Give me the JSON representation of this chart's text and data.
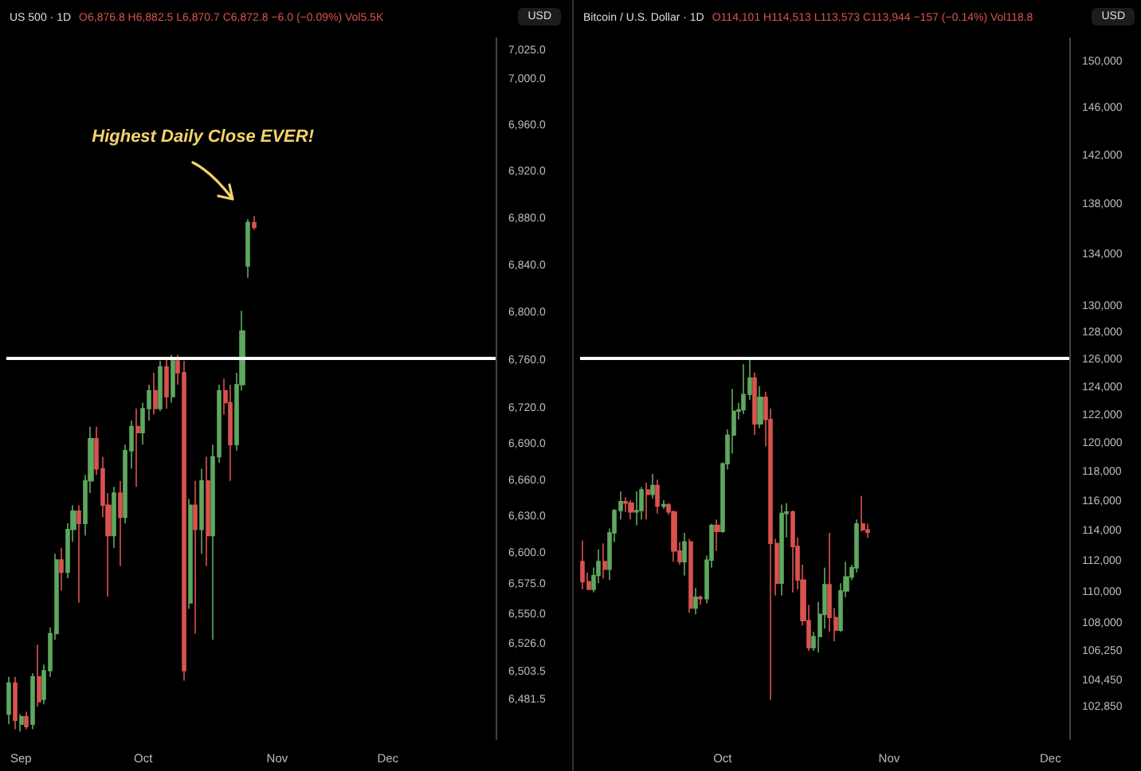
{
  "chart_data": [
    {
      "type": "candlestick",
      "title": "US 500 · 1D",
      "subtitle": "O6,876.8 H6,882.5 L6,870.7 C6,872.8 −6.0 (−0.09%) Vol5.5K",
      "categories": [
        null,
        null,
        "Sep",
        null,
        null,
        null,
        null,
        null,
        null,
        null,
        null,
        null,
        null,
        null,
        null,
        null,
        null,
        null,
        null,
        null,
        null,
        null,
        null,
        "Oct",
        null,
        null,
        null,
        null,
        null,
        null,
        null,
        null,
        null,
        null,
        null,
        null,
        null,
        null,
        null,
        null,
        null,
        null,
        null,
        null,
        null,
        null,
        "Nov",
        null,
        null,
        null,
        null,
        null,
        null,
        null,
        null,
        null,
        null,
        null,
        null,
        null,
        null,
        null,
        null,
        null,
        null,
        "Dec",
        null,
        null,
        null,
        null,
        null,
        null,
        null,
        null,
        null,
        null,
        null,
        null,
        null,
        null,
        null,
        null,
        null,
        null
      ],
      "ohlc": [
        [
          6470,
          6500,
          6462,
          6495
        ],
        [
          6495,
          6500,
          6458,
          6465
        ],
        [
          6462,
          6470,
          6456,
          6468
        ],
        [
          6468,
          6472,
          6458,
          6460
        ],
        [
          6462,
          6503,
          6458,
          6500
        ],
        [
          6500,
          6526,
          6476,
          6480
        ],
        [
          6482,
          6510,
          6478,
          6505
        ],
        [
          6505,
          6540,
          6500,
          6535
        ],
        [
          6535,
          6600,
          6530,
          6595
        ],
        [
          6595,
          6605,
          6570,
          6585
        ],
        [
          6585,
          6625,
          6580,
          6620
        ],
        [
          6620,
          6640,
          6610,
          6635
        ],
        [
          6635,
          6640,
          6560,
          6625
        ],
        [
          6625,
          6665,
          6615,
          6660
        ],
        [
          6660,
          6705,
          6650,
          6695
        ],
        [
          6695,
          6705,
          6665,
          6670
        ],
        [
          6670,
          6680,
          6630,
          6640
        ],
        [
          6640,
          6650,
          6565,
          6615
        ],
        [
          6615,
          6655,
          6605,
          6650
        ],
        [
          6650,
          6660,
          6590,
          6630
        ],
        [
          6630,
          6690,
          6625,
          6685
        ],
        [
          6685,
          6710,
          6670,
          6705
        ],
        [
          6705,
          6720,
          6655,
          6700
        ],
        [
          6700,
          6725,
          6690,
          6720
        ],
        [
          6720,
          6740,
          6710,
          6735
        ],
        [
          6735,
          6750,
          6715,
          6720
        ],
        [
          6720,
          6760,
          6718,
          6755
        ],
        [
          6755,
          6762,
          6720,
          6730
        ],
        [
          6730,
          6765,
          6725,
          6760
        ],
        [
          6760,
          6765,
          6740,
          6750
        ],
        [
          6750,
          6760,
          6497,
          6505
        ],
        [
          6560,
          6645,
          6555,
          6640
        ],
        [
          6640,
          6660,
          6535,
          6620
        ],
        [
          6620,
          6670,
          6600,
          6660
        ],
        [
          6660,
          6680,
          6590,
          6615
        ],
        [
          6615,
          6690,
          6530,
          6680
        ],
        [
          6680,
          6740,
          6675,
          6735
        ],
        [
          6735,
          6745,
          6715,
          6725
        ],
        [
          6725,
          6740,
          6660,
          6690
        ],
        [
          6690,
          6750,
          6685,
          6740
        ],
        [
          6740,
          6802,
          6735,
          6785
        ],
        [
          6840,
          6880,
          6830,
          6877
        ],
        [
          6876.8,
          6882.5,
          6870.7,
          6872.8
        ],
        null,
        null,
        null,
        null,
        null,
        null,
        null,
        null,
        null,
        null,
        null,
        null,
        null,
        null,
        null,
        null,
        null,
        null,
        null,
        null,
        null,
        null,
        null,
        null,
        null,
        null,
        null,
        null,
        null,
        null,
        null,
        null,
        null,
        null,
        null,
        null,
        null,
        null,
        null,
        null,
        null
      ],
      "colors": [
        "#5fa85f",
        "#d9534f",
        "#5fa85f",
        "#d9534f",
        "#5fa85f",
        "#d9534f",
        "#5fa85f",
        "#5fa85f",
        "#5fa85f",
        "#d9534f",
        "#5fa85f",
        "#5fa85f",
        "#d9534f",
        "#5fa85f",
        "#5fa85f",
        "#d9534f",
        "#d9534f",
        "#d9534f",
        "#5fa85f",
        "#d9534f",
        "#5fa85f",
        "#5fa85f",
        "#d9534f",
        "#5fa85f",
        "#5fa85f",
        "#d9534f",
        "#5fa85f",
        "#d9534f",
        "#5fa85f",
        "#d9534f",
        "#d9534f",
        "#5fa85f",
        "#d9534f",
        "#5fa85f",
        "#d9534f",
        "#5fa85f",
        "#5fa85f",
        "#d9534f",
        "#d9534f",
        "#5fa85f",
        "#5fa85f",
        "#5fa85f",
        "#d9534f",
        null,
        null,
        null,
        null,
        null,
        null,
        null,
        null,
        null,
        null,
        null,
        null,
        null,
        null,
        null,
        null,
        null,
        null,
        null,
        null,
        null,
        null,
        null,
        null,
        null,
        null,
        null,
        null,
        null,
        null,
        null,
        null,
        null,
        null,
        null,
        null,
        null,
        null,
        null,
        null,
        null
      ],
      "log": true,
      "ylim": [
        6450,
        7036
      ],
      "yticks": [
        {
          "value": 7025,
          "label": "7,025.0"
        },
        {
          "value": 7000,
          "label": "7,000.0"
        },
        {
          "value": 6960,
          "label": "6,960.0"
        },
        {
          "value": 6920,
          "label": "6,920.0"
        },
        {
          "value": 6880,
          "label": "6,880.0"
        },
        {
          "value": 6840,
          "label": "6,840.0"
        },
        {
          "value": 6800,
          "label": "6,800.0"
        },
        {
          "value": 6760,
          "label": "6,760.0"
        },
        {
          "value": 6720,
          "label": "6,720.0"
        },
        {
          "value": 6690,
          "label": "6,690.0"
        },
        {
          "value": 6660,
          "label": "6,660.0"
        },
        {
          "value": 6630,
          "label": "6,630.0"
        },
        {
          "value": 6600,
          "label": "6,600.0"
        },
        {
          "value": 6575,
          "label": "6,575.0"
        },
        {
          "value": 6550,
          "label": "6,550.0"
        },
        {
          "value": 6526,
          "label": "6,526.0"
        },
        {
          "value": 6503.5,
          "label": "6,503.5"
        },
        {
          "value": 6481.5,
          "label": "6,481.5"
        }
      ],
      "ref_lines": [
        {
          "axis": "y",
          "value": 6762,
          "color": "#ffffff"
        }
      ],
      "annotations": [
        "Highest Daily Close EVER!",
        "USD"
      ]
    },
    {
      "type": "candlestick",
      "title": "Bitcoin / U.S. Dollar · 1D",
      "subtitle": "O114,101 H114,513 L113,573 C113,944 −157 (−0.14%) Vol118.8",
      "categories": [
        null,
        null,
        null,
        null,
        null,
        null,
        null,
        null,
        null,
        null,
        null,
        null,
        null,
        null,
        null,
        null,
        null,
        null,
        null,
        null,
        null,
        null,
        null,
        null,
        null,
        null,
        "Oct",
        null,
        null,
        null,
        null,
        null,
        null,
        null,
        null,
        null,
        null,
        null,
        null,
        null,
        null,
        null,
        null,
        null,
        null,
        null,
        null,
        null,
        null,
        null,
        null,
        null,
        null,
        null,
        null,
        null,
        null,
        "Nov",
        null,
        null,
        null,
        null,
        null,
        null,
        null,
        null,
        null,
        null,
        null,
        null,
        null,
        null,
        null,
        null,
        null,
        null,
        null,
        null,
        null,
        null,
        null,
        null,
        null,
        null,
        null,
        null,
        null,
        "Dec",
        null,
        null,
        null
      ],
      "ohlc": [
        [
          112000,
          113400,
          110200,
          110700
        ],
        [
          110700,
          111300,
          110200,
          110200
        ],
        [
          110200,
          111600,
          110000,
          111100
        ],
        [
          111100,
          112800,
          110600,
          112000
        ],
        [
          112000,
          113200,
          110900,
          111500
        ],
        [
          111500,
          114200,
          110800,
          113900
        ],
        [
          113900,
          115500,
          113300,
          115400
        ],
        [
          115400,
          116700,
          114800,
          116000
        ],
        [
          116000,
          116300,
          115300,
          115900
        ],
        [
          115900,
          116100,
          114800,
          115300
        ],
        [
          115300,
          116700,
          114400,
          115400
        ],
        [
          115400,
          117000,
          114800,
          116800
        ],
        [
          116800,
          117300,
          114800,
          116500
        ],
        [
          116500,
          117900,
          116200,
          117100
        ],
        [
          117100,
          117500,
          115200,
          115700
        ],
        [
          115700,
          116100,
          115500,
          115800
        ],
        [
          115800,
          115900,
          115100,
          115300
        ],
        [
          115300,
          115400,
          112000,
          112700
        ],
        [
          112700,
          113300,
          111800,
          112000
        ],
        [
          112000,
          113900,
          111100,
          113300
        ],
        [
          113300,
          113500,
          108700,
          109000
        ],
        [
          109000,
          110300,
          108600,
          109700
        ],
        [
          109700,
          109800,
          109200,
          109600
        ],
        [
          109600,
          112400,
          109300,
          112100
        ],
        [
          112100,
          114500,
          111600,
          114400
        ],
        [
          114400,
          114800,
          112700,
          114000
        ],
        [
          114000,
          118700,
          113900,
          118600
        ],
        [
          118600,
          121000,
          118200,
          120600
        ],
        [
          120600,
          123900,
          119300,
          122300
        ],
        [
          122300,
          122900,
          121700,
          122400
        ],
        [
          122400,
          125700,
          122100,
          123500
        ],
        [
          123500,
          126200,
          123100,
          124700
        ],
        [
          124700,
          125100,
          120600,
          121400
        ],
        [
          121400,
          124100,
          121100,
          123300
        ],
        [
          123300,
          123700,
          119800,
          121700
        ],
        [
          121700,
          122500,
          103300,
          113200
        ],
        [
          113200,
          113500,
          109800,
          110600
        ],
        [
          110600,
          115800,
          109800,
          115200
        ],
        [
          115200,
          115900,
          113600,
          115300
        ],
        [
          115300,
          115400,
          110000,
          113000
        ],
        [
          113000,
          113600,
          110200,
          110800
        ],
        [
          110800,
          111800,
          107900,
          108200
        ],
        [
          108200,
          109200,
          106300,
          106500
        ],
        [
          106500,
          107500,
          106300,
          107200
        ],
        [
          107200,
          109400,
          106200,
          108600
        ],
        [
          108600,
          111600,
          107700,
          110500
        ],
        [
          110500,
          113900,
          107500,
          108400
        ],
        [
          108400,
          109000,
          106900,
          107600
        ],
        [
          107600,
          110600,
          107500,
          110100
        ],
        [
          110100,
          112000,
          109700,
          111000
        ],
        [
          111000,
          111800,
          110800,
          111600
        ],
        [
          111600,
          114800,
          111300,
          114500
        ],
        [
          114500,
          116400,
          114000,
          114100
        ],
        [
          114101,
          114513,
          113573,
          113944
        ],
        null,
        null,
        null,
        null,
        null,
        null,
        null,
        null,
        null,
        null,
        null,
        null,
        null,
        null,
        null,
        null,
        null,
        null,
        null,
        null,
        null,
        null,
        null,
        null,
        null,
        null,
        null,
        null,
        null,
        null,
        null,
        null,
        null,
        null,
        null,
        null,
        null
      ],
      "colors": [
        "#d9534f",
        "#d9534f",
        "#5fa85f",
        "#5fa85f",
        "#d9534f",
        "#5fa85f",
        "#5fa85f",
        "#5fa85f",
        "#d9534f",
        "#d9534f",
        "#5fa85f",
        "#5fa85f",
        "#d9534f",
        "#5fa85f",
        "#d9534f",
        "#5fa85f",
        "#d9534f",
        "#d9534f",
        "#d9534f",
        "#5fa85f",
        "#d9534f",
        "#5fa85f",
        "#d9534f",
        "#5fa85f",
        "#5fa85f",
        "#d9534f",
        "#5fa85f",
        "#5fa85f",
        "#5fa85f",
        "#5fa85f",
        "#5fa85f",
        "#5fa85f",
        "#d9534f",
        "#5fa85f",
        "#d9534f",
        "#d9534f",
        "#d9534f",
        "#5fa85f",
        "#5fa85f",
        "#d9534f",
        "#d9534f",
        "#d9534f",
        "#d9534f",
        "#5fa85f",
        "#5fa85f",
        "#5fa85f",
        "#d9534f",
        "#d9534f",
        "#5fa85f",
        "#5fa85f",
        "#5fa85f",
        "#5fa85f",
        "#d9534f",
        "#d9534f",
        null,
        null,
        null,
        null,
        null,
        null,
        null,
        null,
        null,
        null,
        null,
        null,
        null,
        null,
        null,
        null,
        null,
        null,
        null,
        null,
        null,
        null,
        null,
        null,
        null,
        null,
        null,
        null,
        null,
        null,
        null,
        null,
        null,
        null,
        null,
        null,
        null
      ],
      "log": true,
      "ylim": [
        100960,
        152100
      ],
      "yticks": [
        {
          "value": 150000,
          "label": "150,000"
        },
        {
          "value": 146000,
          "label": "146,000"
        },
        {
          "value": 142000,
          "label": "142,000"
        },
        {
          "value": 138000,
          "label": "138,000"
        },
        {
          "value": 134000,
          "label": "134,000"
        },
        {
          "value": 130000,
          "label": "130,000"
        },
        {
          "value": 128000,
          "label": "128,000"
        },
        {
          "value": 126000,
          "label": "126,000"
        },
        {
          "value": 124000,
          "label": "124,000"
        },
        {
          "value": 122000,
          "label": "122,000"
        },
        {
          "value": 120000,
          "label": "120,000"
        },
        {
          "value": 118000,
          "label": "118,000"
        },
        {
          "value": 116000,
          "label": "116,000"
        },
        {
          "value": 114000,
          "label": "114,000"
        },
        {
          "value": 112000,
          "label": "112,000"
        },
        {
          "value": 110000,
          "label": "110,000"
        },
        {
          "value": 108000,
          "label": "108,000"
        },
        {
          "value": 106250,
          "label": "106,250"
        },
        {
          "value": 104450,
          "label": "104,450"
        },
        {
          "value": 102850,
          "label": "102,850"
        }
      ],
      "ref_lines": [
        {
          "axis": "y",
          "value": 126200,
          "color": "#ffffff"
        }
      ],
      "annotations": [
        "USD"
      ]
    }
  ]
}
